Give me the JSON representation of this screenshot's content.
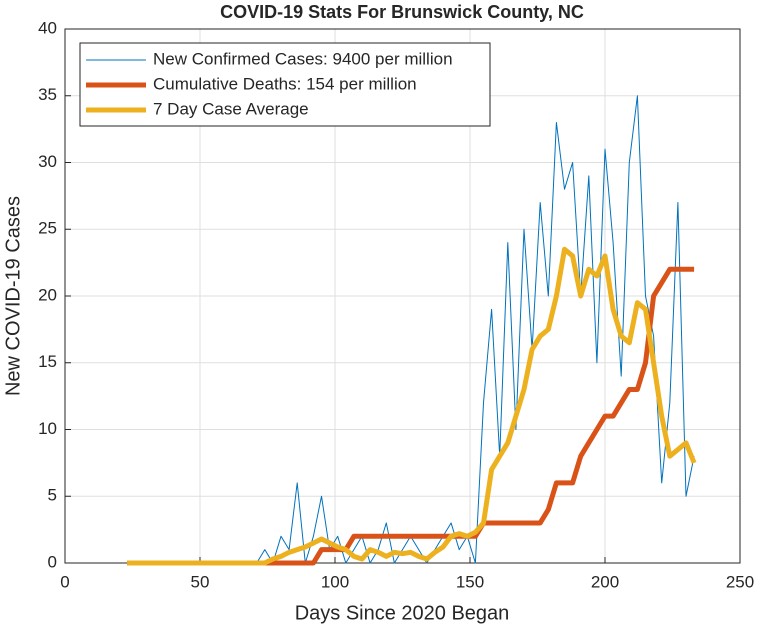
{
  "chart_data": {
    "type": "line",
    "title": "COVID-19 Stats For Brunswick County, NC",
    "x_label": "Days Since 2020 Began",
    "y_label": "New COVID-19 Cases",
    "x": [
      23,
      26,
      29,
      32,
      35,
      38,
      41,
      44,
      47,
      50,
      53,
      56,
      59,
      62,
      65,
      68,
      71,
      74,
      77,
      80,
      83,
      86,
      89,
      92,
      95,
      98,
      101,
      104,
      107,
      110,
      113,
      116,
      119,
      122,
      125,
      128,
      131,
      134,
      137,
      140,
      143,
      146,
      149,
      152,
      155,
      158,
      161,
      164,
      167,
      170,
      173,
      176,
      179,
      182,
      185,
      188,
      191,
      194,
      197,
      200,
      203,
      206,
      209,
      212,
      215,
      218,
      221,
      224,
      227,
      230,
      233
    ],
    "series": [
      {
        "name": "New Confirmed Cases: 9400 per million",
        "color": "#0072bd",
        "width": 1,
        "values": [
          0,
          0,
          0,
          0,
          0,
          0,
          0,
          0,
          0,
          0,
          0,
          0,
          0,
          0,
          0,
          0,
          0,
          1,
          0,
          2,
          1,
          6,
          0,
          2,
          5,
          1,
          2,
          0,
          1,
          2,
          0,
          1,
          3,
          0,
          1,
          2,
          1,
          0,
          1,
          2,
          3,
          1,
          2,
          0,
          12,
          19,
          8,
          24,
          10,
          25,
          16,
          27,
          20,
          33,
          28,
          30,
          20,
          29,
          15,
          31,
          24,
          14,
          30,
          35,
          20,
          17,
          6,
          12,
          27,
          5,
          8
        ]
      },
      {
        "name": "Cumulative Deaths: 154 per million",
        "color": "#d95319",
        "width": 5,
        "values": [
          0,
          0,
          0,
          0,
          0,
          0,
          0,
          0,
          0,
          0,
          0,
          0,
          0,
          0,
          0,
          0,
          0,
          0,
          0,
          0,
          0,
          0,
          0,
          0,
          1,
          1,
          1,
          1,
          2,
          2,
          2,
          2,
          2,
          2,
          2,
          2,
          2,
          2,
          2,
          2,
          2,
          2,
          2,
          2,
          3,
          3,
          3,
          3,
          3,
          3,
          3,
          3,
          4,
          6,
          6,
          6,
          8,
          9,
          10,
          11,
          11,
          12,
          13,
          13,
          15,
          20,
          21,
          22,
          22,
          22,
          22
        ]
      },
      {
        "name": "7 Day Case Average",
        "color": "#edb120",
        "width": 5,
        "values": [
          0,
          0,
          0,
          0,
          0,
          0,
          0,
          0,
          0,
          0,
          0,
          0,
          0,
          0,
          0,
          0,
          0,
          0,
          0.3,
          0.5,
          0.8,
          1,
          1.2,
          1.5,
          1.8,
          1.5,
          1.2,
          1,
          0.5,
          0.3,
          1,
          0.8,
          0.5,
          0.8,
          0.7,
          0.8,
          0.5,
          0.3,
          0.8,
          1.2,
          2,
          2.2,
          2,
          2.3,
          3,
          7,
          8,
          9,
          11,
          13,
          16,
          17,
          17.5,
          20,
          23.5,
          23,
          20,
          22,
          21.5,
          23,
          19,
          17,
          16.5,
          19.5,
          19,
          15,
          11,
          8,
          8.5,
          9,
          7.5
        ]
      }
    ],
    "xlim": [
      0,
      250
    ],
    "xticks": [
      0,
      50,
      100,
      150,
      200,
      250
    ],
    "ylim": [
      0,
      40
    ],
    "yticks": [
      0,
      5,
      10,
      15,
      20,
      25,
      30,
      35,
      40
    ],
    "grid": true,
    "legend_position": "upper-left"
  }
}
